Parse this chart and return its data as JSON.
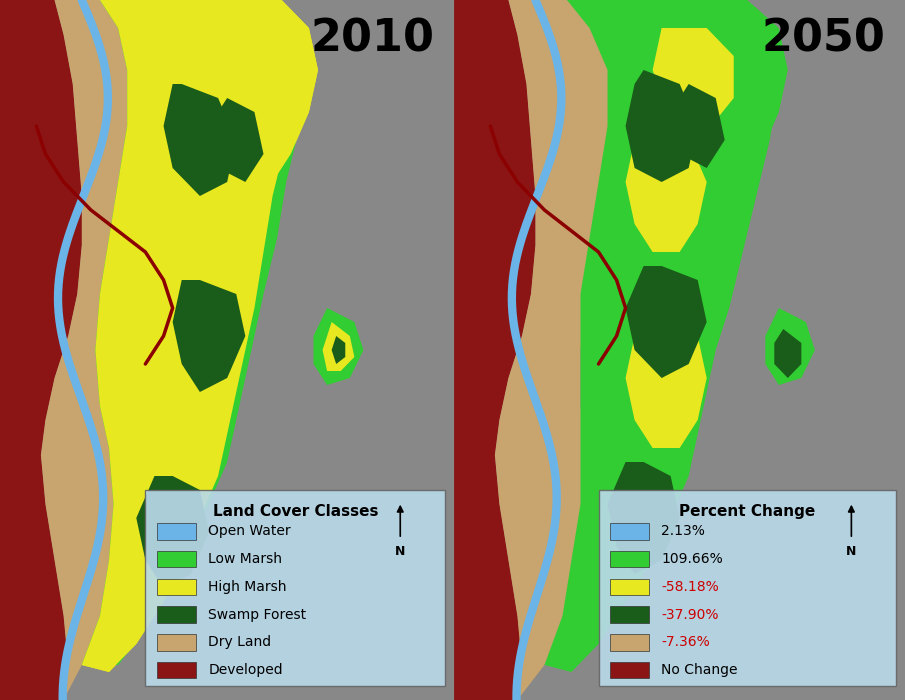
{
  "title_2010": "2010",
  "title_2050": "2050",
  "title_fontsize": 32,
  "title_color": "#000000",
  "fig_width": 9.05,
  "fig_height": 7.0,
  "water_color": "#6ab4e8",
  "developed_color": "#8b1515",
  "dry_land_color": "#c8a46e",
  "low_marsh_color": "#32cd32",
  "high_marsh_color": "#e8e820",
  "swamp_forest_color": "#1a5c1a",
  "river_color": "#6ab4e8",
  "legend1_title": "Land Cover Classes",
  "legend1_items": [
    {
      "label": "Open Water",
      "color": "#6ab4e8",
      "text_color": "#000000"
    },
    {
      "label": "Low Marsh",
      "color": "#32cd32",
      "text_color": "#000000"
    },
    {
      "label": "High Marsh",
      "color": "#e8e820",
      "text_color": "#000000"
    },
    {
      "label": "Swamp Forest",
      "color": "#1a5c1a",
      "text_color": "#000000"
    },
    {
      "label": "Dry Land",
      "color": "#c8a46e",
      "text_color": "#000000"
    },
    {
      "label": "Developed",
      "color": "#8b1515",
      "text_color": "#000000"
    }
  ],
  "legend2_title": "Percent Change",
  "legend2_items": [
    {
      "label": "2.13%",
      "color": "#6ab4e8",
      "text_color": "#000000"
    },
    {
      "label": "109.66%",
      "color": "#32cd32",
      "text_color": "#000000"
    },
    {
      "label": "-58.18%",
      "color": "#e8e820",
      "text_color": "#cc0000"
    },
    {
      "label": "-37.90%",
      "color": "#1a5c1a",
      "text_color": "#cc0000"
    },
    {
      "label": "-7.36%",
      "color": "#c8a46e",
      "text_color": "#cc0000"
    },
    {
      "label": "No Change",
      "color": "#8b1515",
      "text_color": "#000000"
    }
  ],
  "legend_bg": "#b8d8e8",
  "legend_title_fontsize": 11,
  "legend_item_fontsize": 10
}
